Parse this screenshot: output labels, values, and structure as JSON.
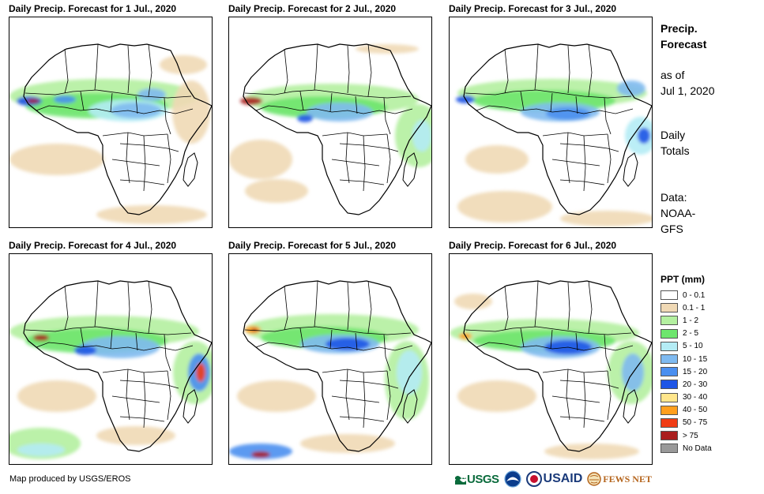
{
  "panels": [
    {
      "title": "Daily Precip. Forecast for 1 Jul., 2020"
    },
    {
      "title": "Daily Precip. Forecast for 2 Jul., 2020"
    },
    {
      "title": "Daily Precip. Forecast for 3 Jul., 2020"
    },
    {
      "title": "Daily Precip. Forecast for 4 Jul., 2020"
    },
    {
      "title": "Daily Precip. Forecast for 5 Jul., 2020"
    },
    {
      "title": "Daily Precip. Forecast for 6 Jul., 2020"
    }
  ],
  "sidebar": {
    "title_line1": "Precip.",
    "title_line2": "Forecast",
    "asof_line1": "as of",
    "asof_line2": "Jul 1, 2020",
    "totals_line1": "Daily",
    "totals_line2": "Totals",
    "data_line1": "Data:",
    "data_line2": "NOAA-",
    "data_line3": "GFS"
  },
  "legend": {
    "title": "PPT (mm)",
    "items": [
      {
        "label": "0 - 0.1",
        "color": "#ffffff"
      },
      {
        "label": "0.1 - 1",
        "color": "#f0d9b5"
      },
      {
        "label": "1 - 2",
        "color": "#b4f0a0"
      },
      {
        "label": "2 - 5",
        "color": "#6ee66e"
      },
      {
        "label": "5 - 10",
        "color": "#b4ecf5"
      },
      {
        "label": "10 - 15",
        "color": "#7fbaf0"
      },
      {
        "label": "15 - 20",
        "color": "#4a8ff0"
      },
      {
        "label": "20 - 30",
        "color": "#1e55e6"
      },
      {
        "label": "30 - 40",
        "color": "#ffe68c"
      },
      {
        "label": "40 - 50",
        "color": "#ff9f1e"
      },
      {
        "label": "50 - 75",
        "color": "#f03c14"
      },
      {
        "label": "> 75",
        "color": "#aa1e1e"
      },
      {
        "label": "No Data",
        "color": "#999999"
      }
    ]
  },
  "footer": {
    "credit": "Map produced by USGS/EROS",
    "logos": [
      "USGS",
      "NOAA",
      "USAID",
      "FEWS NET"
    ]
  }
}
